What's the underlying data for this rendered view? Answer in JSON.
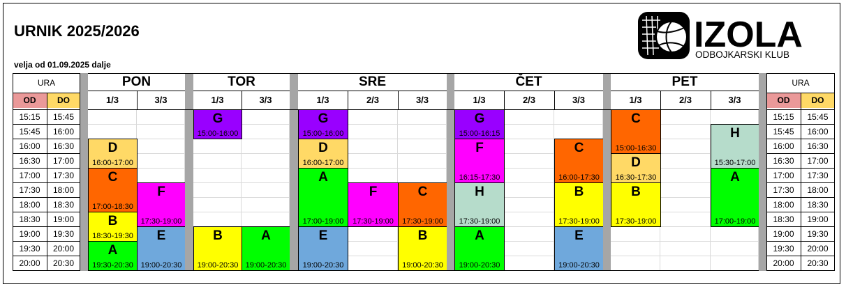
{
  "title": "URNIK 2025/2026",
  "subtitle": "velja od 01.09.2025 dalje",
  "logo": {
    "name": "IZOLA",
    "tagline": "ODBOJKARSKI KLUB"
  },
  "ura": {
    "label": "URA",
    "od": "OD",
    "do": "DO"
  },
  "times": [
    [
      "15:15",
      "15:45"
    ],
    [
      "15:45",
      "16:00"
    ],
    [
      "16:00",
      "16:30"
    ],
    [
      "16:30",
      "17:00"
    ],
    [
      "17:00",
      "17:30"
    ],
    [
      "17:30",
      "18:00"
    ],
    [
      "18:00",
      "18:30"
    ],
    [
      "18:30",
      "19:00"
    ],
    [
      "19:00",
      "19:30"
    ],
    [
      "19:30",
      "20:00"
    ],
    [
      "20:00",
      "20:30"
    ]
  ],
  "days": [
    {
      "name": "PON",
      "courts": [
        "1/3",
        "3/3"
      ]
    },
    {
      "name": "TOR",
      "courts": [
        "1/3",
        "3/3"
      ]
    },
    {
      "name": "SRE",
      "courts": [
        "1/3",
        "2/3",
        "3/3"
      ]
    },
    {
      "name": "ČET",
      "courts": [
        "1/3",
        "2/3",
        "3/3"
      ]
    },
    {
      "name": "PET",
      "courts": [
        "1/3",
        "2/3",
        "3/3"
      ]
    }
  ],
  "colors": {
    "A": "#00ff00",
    "B": "#ffff00",
    "C": "#ff6600",
    "D": "#ffd966",
    "E": "#6fa8dc",
    "F": "#ff00ff",
    "G": "#9900ff",
    "H": "#b6dccb",
    "od": "#ea9999",
    "do": "#ffd966"
  },
  "blocks": [
    {
      "col": 0,
      "r0": 2,
      "r1": 4,
      "letter": "D",
      "time": "16:00-17:00"
    },
    {
      "col": 0,
      "r0": 4,
      "r1": 7,
      "letter": "C",
      "time": "17:00-18:30"
    },
    {
      "col": 0,
      "r0": 7,
      "r1": 9,
      "letter": "B",
      "time": "18:30-19:30"
    },
    {
      "col": 0,
      "r0": 9,
      "r1": 11,
      "letter": "A",
      "time": "19:30-20:30"
    },
    {
      "col": 1,
      "r0": 5,
      "r1": 8,
      "letter": "F",
      "time": "17:30-19:00"
    },
    {
      "col": 1,
      "r0": 8,
      "r1": 11,
      "letter": "E",
      "time": "19:00-20:30"
    },
    {
      "col": 2,
      "r0": 0,
      "r1": 2,
      "letter": "G",
      "time": "15:00-16:00"
    },
    {
      "col": 2,
      "r0": 8,
      "r1": 11,
      "letter": "B",
      "time": "19:00-20:30"
    },
    {
      "col": 3,
      "r0": 8,
      "r1": 11,
      "letter": "A",
      "time": "19:00-20:30"
    },
    {
      "col": 4,
      "r0": 0,
      "r1": 2,
      "letter": "G",
      "time": "15:00-16:00"
    },
    {
      "col": 4,
      "r0": 2,
      "r1": 4,
      "letter": "D",
      "time": "16:00-17:00"
    },
    {
      "col": 4,
      "r0": 4,
      "r1": 8,
      "letter": "A",
      "time": "17:00-19:00"
    },
    {
      "col": 4,
      "r0": 8,
      "r1": 11,
      "letter": "E",
      "time": "19:00-20:30"
    },
    {
      "col": 5,
      "r0": 5,
      "r1": 8,
      "letter": "F",
      "time": "17:30-19:00"
    },
    {
      "col": 6,
      "r0": 5,
      "r1": 8,
      "letter": "C",
      "time": "17:30-19:00"
    },
    {
      "col": 6,
      "r0": 8,
      "r1": 11,
      "letter": "B",
      "time": "19:00-20:30"
    },
    {
      "col": 7,
      "r0": 0,
      "r1": 2,
      "letter": "G",
      "time": "15:00-16:15"
    },
    {
      "col": 7,
      "r0": 2,
      "r1": 5,
      "letter": "F",
      "time": "16:15-17:30"
    },
    {
      "col": 7,
      "r0": 5,
      "r1": 8,
      "letter": "H",
      "time": "17:30-19:00"
    },
    {
      "col": 7,
      "r0": 8,
      "r1": 11,
      "letter": "A",
      "time": "19:00-20:30"
    },
    {
      "col": 9,
      "r0": 2,
      "r1": 5,
      "letter": "C",
      "time": "16:00-17:30"
    },
    {
      "col": 9,
      "r0": 5,
      "r1": 8,
      "letter": "B",
      "time": "17:30-19:00"
    },
    {
      "col": 9,
      "r0": 8,
      "r1": 11,
      "letter": "E",
      "time": "19:00-20:30"
    },
    {
      "col": 10,
      "r0": 0,
      "r1": 3,
      "letter": "C",
      "time": "15:00-16:30"
    },
    {
      "col": 10,
      "r0": 3,
      "r1": 5,
      "letter": "D",
      "time": "16:30-17:30"
    },
    {
      "col": 10,
      "r0": 5,
      "r1": 8,
      "letter": "B",
      "time": "17:30-19:00"
    },
    {
      "col": 12,
      "r0": 1,
      "r1": 4,
      "letter": "H",
      "time": "15:30-17:00"
    },
    {
      "col": 12,
      "r0": 4,
      "r1": 8,
      "letter": "A",
      "time": "17:00-19:00"
    }
  ]
}
